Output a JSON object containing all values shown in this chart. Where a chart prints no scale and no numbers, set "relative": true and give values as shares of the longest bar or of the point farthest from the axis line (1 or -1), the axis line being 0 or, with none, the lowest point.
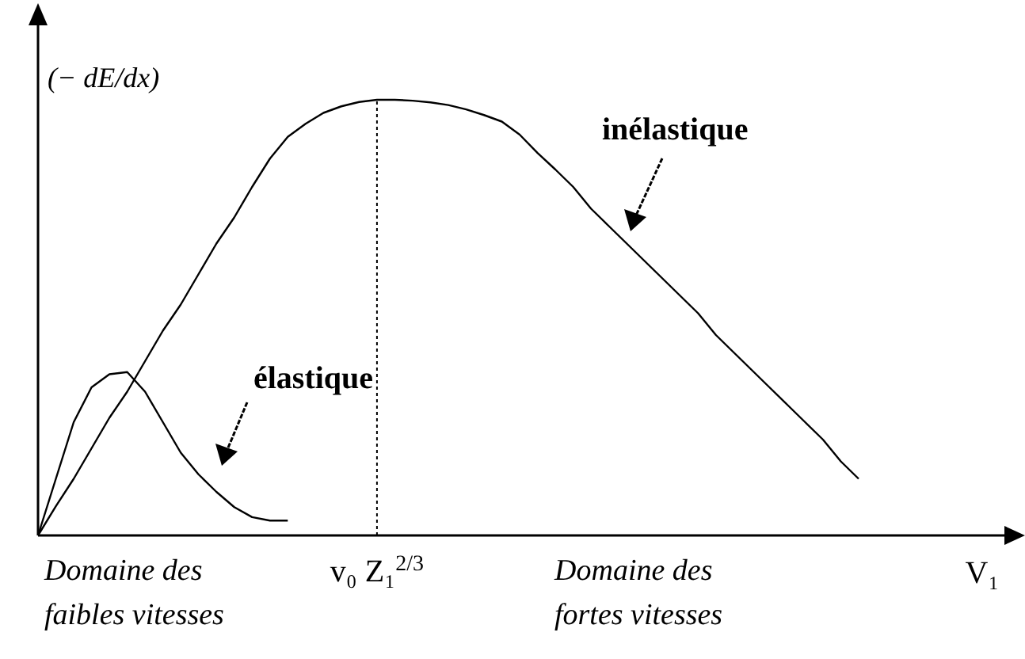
{
  "chart_data": {
    "type": "line",
    "relative": true,
    "xlabel": "V₁",
    "ylabel": "(− dE/dx)",
    "marker": "none",
    "line_style": "solid",
    "categories": [
      null,
      null,
      null,
      null,
      null,
      null,
      null,
      null,
      null,
      null,
      null,
      null,
      null,
      null,
      null,
      null,
      null,
      null,
      null,
      null,
      null,
      null,
      null,
      null,
      null,
      null,
      null,
      null,
      null,
      null,
      null,
      null,
      null,
      null,
      null,
      null,
      null,
      null,
      null,
      null,
      null,
      null,
      null,
      null,
      null,
      null,
      null
    ],
    "series": [
      {
        "name": "élastique",
        "color": "#000000",
        "values": [
          0,
          0.13,
          0.26,
          0.34,
          0.37,
          0.375,
          0.33,
          0.26,
          0.19,
          0.14,
          0.1,
          0.065,
          0.042,
          0.034,
          0.034,
          null,
          null,
          null,
          null,
          null,
          null,
          null,
          null,
          null,
          null,
          null,
          null,
          null,
          null,
          null,
          null,
          null,
          null,
          null,
          null,
          null,
          null,
          null,
          null,
          null,
          null,
          null,
          null,
          null,
          null,
          null,
          null
        ]
      },
      {
        "name": "inélastique",
        "color": "#000000",
        "values": [
          0,
          0.067,
          0.13,
          0.2,
          0.27,
          0.33,
          0.4,
          0.47,
          0.53,
          0.6,
          0.67,
          0.73,
          0.8,
          0.865,
          0.915,
          0.945,
          0.97,
          0.985,
          0.995,
          1,
          1,
          0.998,
          0.994,
          0.988,
          0.978,
          0.965,
          0.95,
          0.92,
          0.878,
          0.84,
          0.8,
          0.75,
          0.71,
          0.67,
          0.63,
          0.59,
          0.55,
          0.51,
          0.46,
          0.42,
          0.38,
          0.34,
          0.3,
          0.26,
          0.22,
          0.17,
          0.13
        ]
      }
    ],
    "annotations": [
      "Domaine des faibles vitesses",
      "v₀ Z₁$^{2/3}$",
      "Domaine des fortes vitesses"
    ]
  }
}
